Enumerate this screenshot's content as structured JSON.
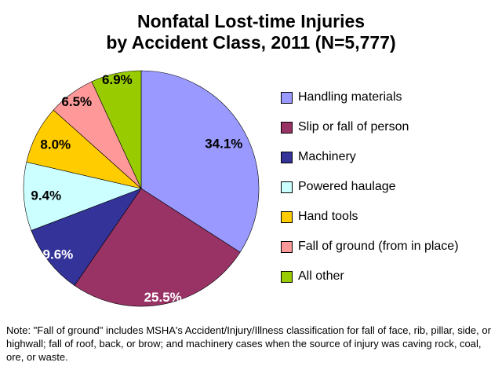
{
  "chart_data": {
    "type": "pie",
    "title_line1": "Nonfatal Lost-time Injuries",
    "title_line2": "by Accident Class, 2011 (N=5,777)",
    "start_angle_deg": 0,
    "direction": "clockwise",
    "legend_position": "right",
    "label_radius_factors": [
      0.8,
      0.94,
      0.9,
      0.81,
      0.82,
      0.92,
      0.95
    ],
    "slices": [
      {
        "label": "Handling materials",
        "value": 34.1,
        "display": "34.1%",
        "color": "#9999FF",
        "label_color": "#000000"
      },
      {
        "label": "Slip or fall of person",
        "value": 25.5,
        "display": "25.5%",
        "color": "#993366",
        "label_color": "#FFFFFF"
      },
      {
        "label": "Machinery",
        "value": 9.6,
        "display": "9.6%",
        "color": "#333399",
        "label_color": "#FFFFFF"
      },
      {
        "label": "Powered haulage",
        "value": 9.4,
        "display": "9.4%",
        "color": "#CCFFFF",
        "label_color": "#000000"
      },
      {
        "label": "Hand tools",
        "value": 8.0,
        "display": "8.0%",
        "color": "#FFCC00",
        "label_color": "#000000"
      },
      {
        "label": "Fall of ground (from in place)",
        "value": 6.5,
        "display": "6.5%",
        "color": "#FF9999",
        "label_color": "#000000"
      },
      {
        "label": "All other",
        "value": 6.9,
        "display": "6.9%",
        "color": "#99CC00",
        "label_color": "#000000"
      }
    ]
  },
  "note": "Note: \"Fall of ground\" includes MSHA's Accident/Injury/Illness classification for fall of face, rib, pillar, side, or highwall; fall of roof, back, or brow; and machinery cases when the source of injury was caving rock, coal, ore, or waste."
}
